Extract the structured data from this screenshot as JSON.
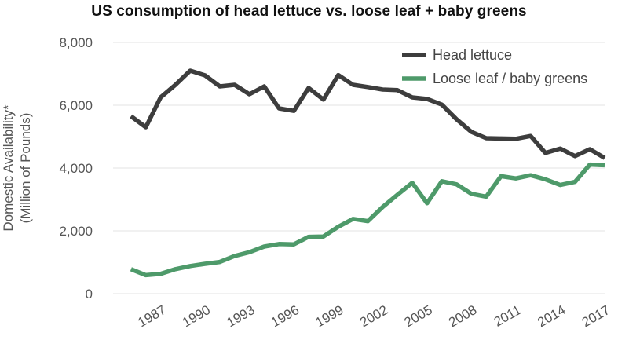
{
  "chart_data": {
    "type": "line",
    "title": "US consumption of head lettuce vs. loose leaf + baby greens",
    "ylabel_line1": "Domestic Availability*",
    "ylabel_line2": "(Million of Pounds)",
    "xlabel": "",
    "ylim": [
      0,
      8000
    ],
    "yticks": [
      0,
      2000,
      4000,
      6000,
      8000
    ],
    "ytick_labels": [
      "0",
      "2,000",
      "4,000",
      "6,000",
      "8,000"
    ],
    "xlim": [
      1984,
      2017
    ],
    "xticks": [
      1987,
      1990,
      1993,
      1996,
      1999,
      2002,
      2005,
      2008,
      2011,
      2014,
      2017
    ],
    "xtick_labels": [
      "1987",
      "1990",
      "1993",
      "1996",
      "1999",
      "2002",
      "2005",
      "2008",
      "2011",
      "2014",
      "2017"
    ],
    "grid": "horizontal",
    "legend": "top-right",
    "x": [
      1985,
      1986,
      1987,
      1988,
      1989,
      1990,
      1991,
      1992,
      1993,
      1994,
      1995,
      1996,
      1997,
      1998,
      1999,
      2000,
      2001,
      2002,
      2003,
      2004,
      2005,
      2006,
      2007,
      2008,
      2009,
      2010,
      2011,
      2012,
      2013,
      2014,
      2015,
      2016,
      2017
    ],
    "series": [
      {
        "name": "Head lettuce",
        "color": "#3d3d3d",
        "values": [
          5650,
          5300,
          6250,
          6650,
          7100,
          6950,
          6600,
          6650,
          6350,
          6600,
          5900,
          5820,
          6550,
          6180,
          6960,
          6650,
          6580,
          6500,
          6480,
          6250,
          6200,
          6020,
          5550,
          5150,
          4950,
          4940,
          4930,
          5020,
          4480,
          4620,
          4380,
          4600,
          4320
        ]
      },
      {
        "name": "Loose leaf / baby greens",
        "color": "#4e9a6a",
        "values": [
          780,
          590,
          630,
          780,
          880,
          950,
          1010,
          1200,
          1320,
          1500,
          1580,
          1570,
          1810,
          1820,
          2130,
          2380,
          2310,
          2760,
          3150,
          3530,
          2880,
          3580,
          3480,
          3180,
          3090,
          3740,
          3670,
          3770,
          3640,
          3460,
          3560,
          4110,
          4090
        ]
      }
    ]
  }
}
